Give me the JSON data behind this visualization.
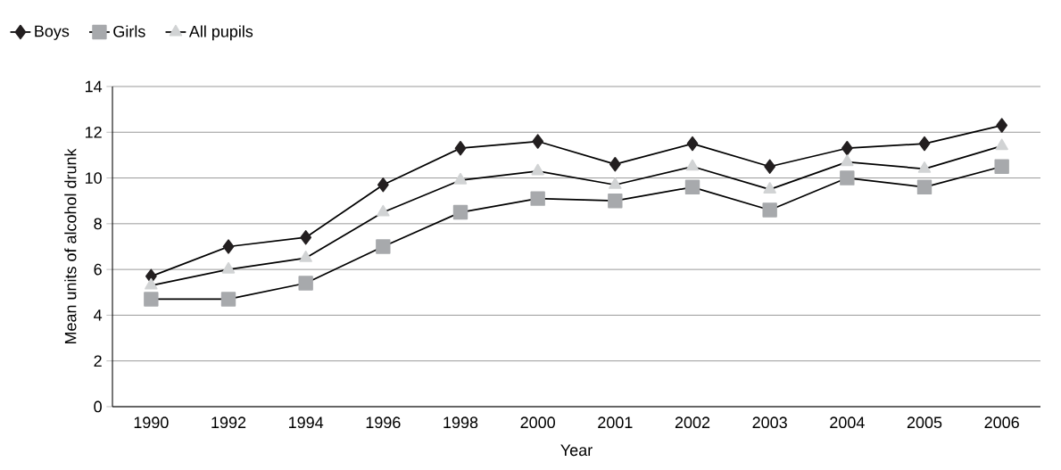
{
  "chart_data": {
    "type": "line",
    "xlabel": "Year",
    "ylabel": "Mean units of alcohol drunk",
    "categories": [
      "1990",
      "1992",
      "1994",
      "1996",
      "1998",
      "2000",
      "2001",
      "2002",
      "2003",
      "2004",
      "2005",
      "2006"
    ],
    "series": [
      {
        "name": "Boys",
        "color": "#231f20",
        "marker": "diamond",
        "values": [
          5.7,
          7.0,
          7.4,
          9.7,
          11.3,
          11.6,
          10.6,
          11.5,
          10.5,
          11.3,
          11.5,
          12.3
        ]
      },
      {
        "name": "Girls",
        "color": "#a7a9ac",
        "marker": "square",
        "values": [
          4.7,
          4.7,
          5.4,
          7.0,
          8.5,
          9.1,
          9.0,
          9.6,
          8.6,
          10.0,
          9.6,
          10.5
        ]
      },
      {
        "name": "All pupils",
        "color": "#d1d3d4",
        "marker": "triangle",
        "values": [
          5.3,
          6.0,
          6.5,
          8.5,
          9.9,
          10.3,
          9.7,
          10.5,
          9.5,
          10.7,
          10.4,
          11.4
        ]
      }
    ],
    "ylim": [
      0,
      14
    ],
    "yticks": [
      0,
      2,
      4,
      6,
      8,
      10,
      12,
      14
    ],
    "grid": "y",
    "legend": "top left",
    "line_style": "solid"
  }
}
